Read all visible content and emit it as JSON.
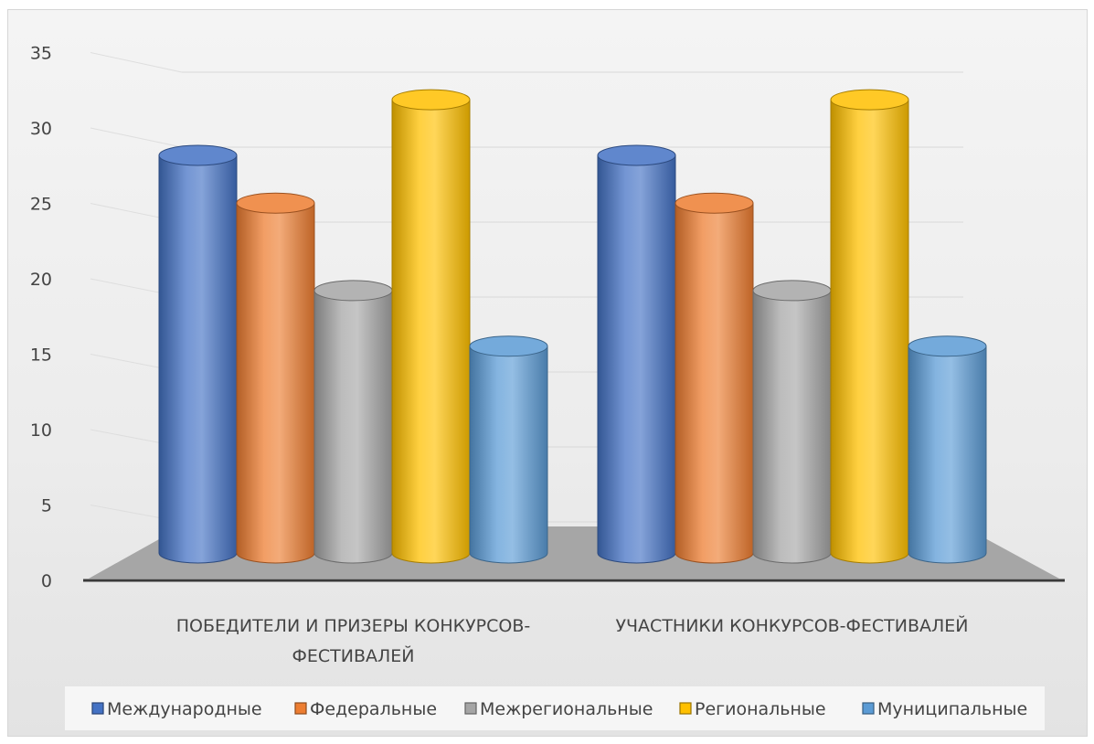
{
  "chart_data": {
    "type": "bar",
    "style": "3d-cylinder",
    "categories": [
      [
        "ПОБЕДИТЕЛИ И ПРИЗЕРЫ КОНКУРСОВ-",
        "ФЕСТИВАЛЕЙ"
      ],
      [
        "УЧАСТНИКИ КОНКУРСОВ-ФЕСТИВАЛЕЙ"
      ]
    ],
    "series": [
      {
        "name": "Международные",
        "color": "#4472c4",
        "values": [
          25,
          25
        ]
      },
      {
        "name": "Федеральные",
        "color": "#ed7d31",
        "values": [
          22,
          22
        ]
      },
      {
        "name": "Межрегиональные",
        "color": "#a5a5a5",
        "values": [
          16.5,
          16.5
        ]
      },
      {
        "name": "Региональные",
        "color": "#ffc000",
        "values": [
          28.5,
          28.5
        ]
      },
      {
        "name": "Муниципальные",
        "color": "#5b9bd5",
        "values": [
          13,
          13
        ]
      }
    ],
    "yticks": [
      0,
      5,
      10,
      15,
      20,
      25,
      30,
      35
    ],
    "ylim": [
      0,
      35
    ],
    "grid": true,
    "legend": "bottom"
  }
}
